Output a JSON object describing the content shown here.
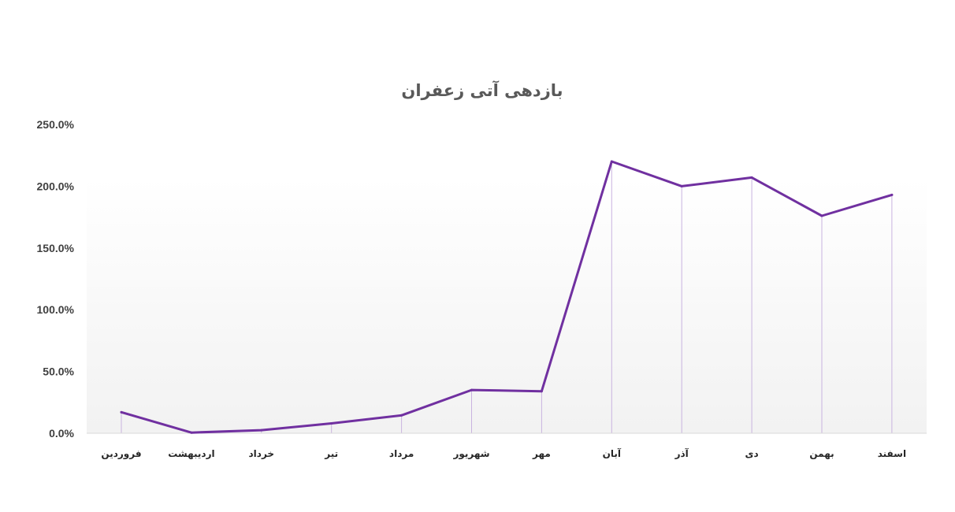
{
  "chart_data": {
    "type": "line",
    "title": "بازدهی آتی زعفران",
    "xlabel": "",
    "ylabel": "",
    "categories": [
      "فروردین",
      "اردیبهشت",
      "خرداد",
      "تیر",
      "مرداد",
      "شهریور",
      "مهر",
      "آبان",
      "آذر",
      "دی",
      "بهمن",
      "اسفند"
    ],
    "series": [
      {
        "values": [
          17.0,
          0.5,
          2.5,
          8.0,
          14.5,
          35.0,
          34.0,
          220.0,
          200.0,
          207.0,
          176.0,
          193.0
        ]
      }
    ],
    "y_ticks": [
      "0.0%",
      "50.0%",
      "100.0%",
      "150.0%",
      "200.0%",
      "250.0%"
    ],
    "ylim": [
      0,
      250
    ],
    "y_format": "percent",
    "drop_lines": true,
    "grid": false,
    "legend": "none",
    "colors": {
      "line": "#7030A0",
      "drop_line": "#C9B3E0",
      "axis": "#D9D9D9",
      "plot_gradient_top": "#FFFFFF",
      "plot_gradient_bottom": "#F2F2F2"
    }
  }
}
